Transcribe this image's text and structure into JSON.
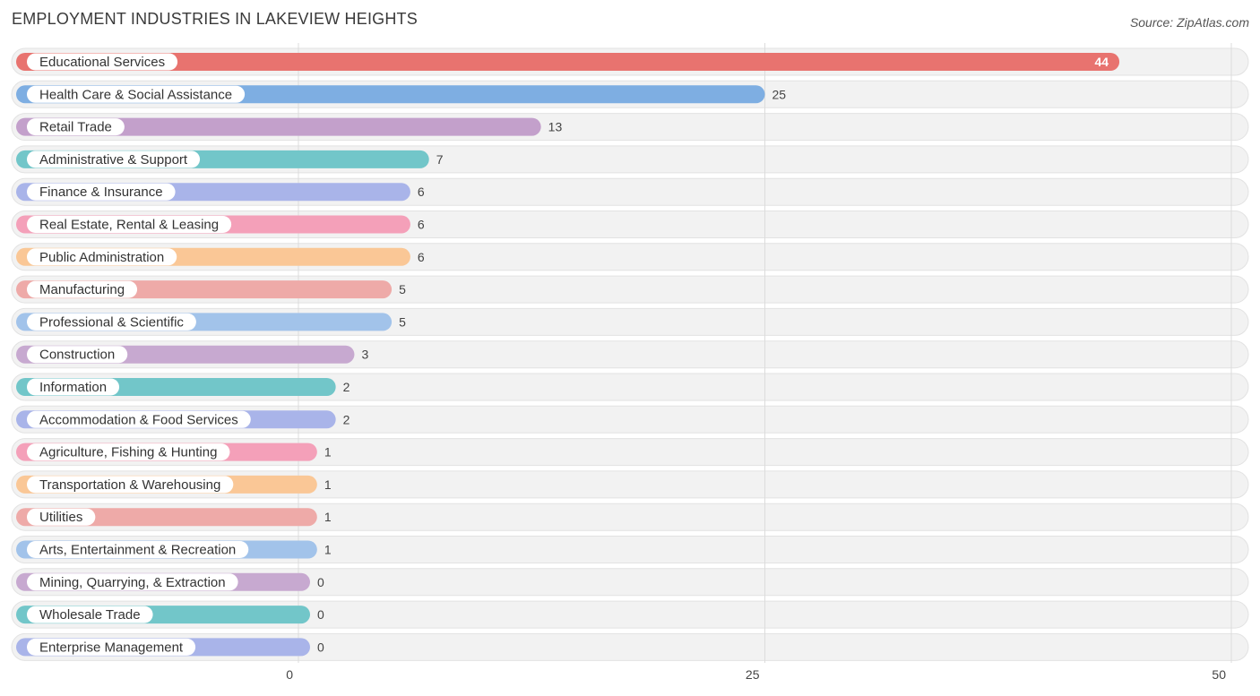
{
  "header": {
    "title": "EMPLOYMENT INDUSTRIES IN LAKEVIEW HEIGHTS",
    "source": "Source: ZipAtlas.com"
  },
  "chart_data": {
    "type": "bar",
    "orientation": "horizontal",
    "title": "EMPLOYMENT INDUSTRIES IN LAKEVIEW HEIGHTS",
    "xlim": [
      0,
      50
    ],
    "x_ticks": [
      0,
      25,
      50
    ],
    "grid": true,
    "categories": [
      "Educational Services",
      "Health Care & Social Assistance",
      "Retail Trade",
      "Administrative & Support",
      "Finance & Insurance",
      "Real Estate, Rental & Leasing",
      "Public Administration",
      "Manufacturing",
      "Professional & Scientific",
      "Construction",
      "Information",
      "Accommodation & Food Services",
      "Agriculture, Fishing & Hunting",
      "Transportation & Warehousing",
      "Utilities",
      "Arts, Entertainment & Recreation",
      "Mining, Quarrying, & Extraction",
      "Wholesale Trade",
      "Enterprise Management"
    ],
    "values": [
      44,
      25,
      13,
      7,
      6,
      6,
      6,
      5,
      5,
      3,
      2,
      2,
      1,
      1,
      1,
      1,
      0,
      0,
      0
    ],
    "colors": [
      "#e8736f",
      "#7eaee2",
      "#c3a0cb",
      "#72c6c9",
      "#a9b4e9",
      "#f4a0b9",
      "#fac796",
      "#eeaaa8",
      "#a2c3ea",
      "#c7a9d0",
      "#72c6c9",
      "#a9b4e9",
      "#f4a0b9",
      "#fac796",
      "#eeaaa8",
      "#a2c3ea",
      "#c7a9d0",
      "#72c6c9",
      "#a9b4e9"
    ]
  }
}
